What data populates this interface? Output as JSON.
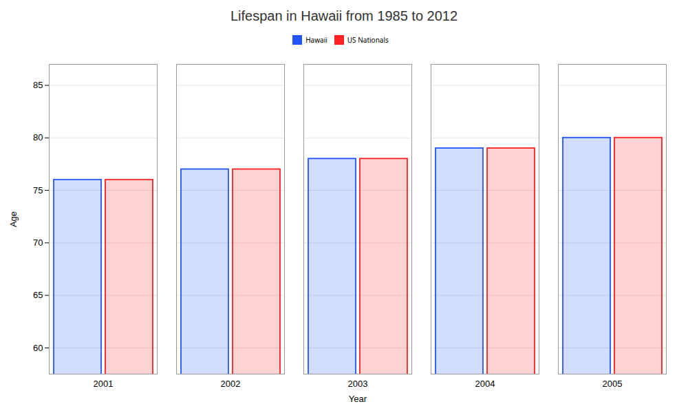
{
  "chart_data": {
    "type": "bar",
    "title": "Lifespan in Hawaii from 1985 to 2012",
    "xlabel": "Year",
    "ylabel": "Age",
    "categories": [
      "2001",
      "2002",
      "2003",
      "2004",
      "2005"
    ],
    "series": [
      {
        "name": "Hawaii",
        "color": "#2255ff",
        "values": [
          76,
          77,
          78,
          79,
          80
        ]
      },
      {
        "name": "US Nationals",
        "color": "#ff2222",
        "values": [
          76,
          77,
          78,
          79,
          80
        ]
      }
    ],
    "ylim": [
      57.5,
      87
    ],
    "yticks": [
      60,
      65,
      70,
      75,
      80,
      85
    ],
    "grid": true,
    "legend": "top"
  }
}
